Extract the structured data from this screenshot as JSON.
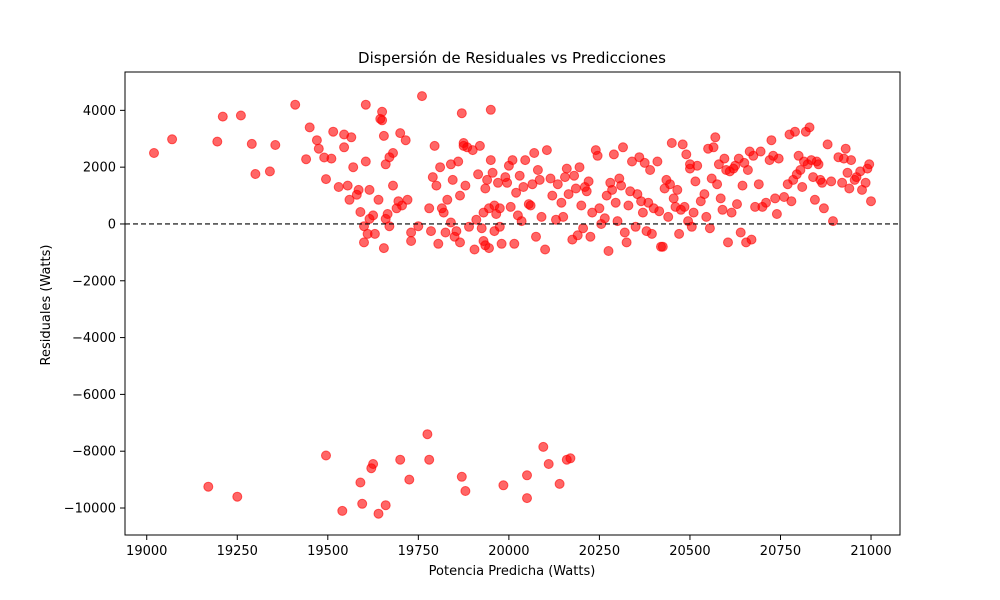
{
  "chart_data": {
    "type": "scatter",
    "title": "Dispersión de Residuales vs Predicciones",
    "xlabel": "Potencia Predicha (Watts)",
    "ylabel": "Residuales (Watts)",
    "xlim": [
      18940,
      21080
    ],
    "ylim": [
      -10950,
      5350
    ],
    "xticks": [
      19000,
      19250,
      19500,
      19750,
      20000,
      20250,
      20500,
      20750,
      21000
    ],
    "xtick_labels": [
      "19000",
      "19250",
      "19500",
      "19750",
      "20000",
      "20250",
      "20500",
      "20750",
      "21000"
    ],
    "yticks": [
      -10000,
      -8000,
      -6000,
      -4000,
      -2000,
      0,
      2000,
      4000
    ],
    "ytick_labels": [
      "−10000",
      "−8000",
      "−6000",
      "−4000",
      "−2000",
      "0",
      "2000",
      "4000"
    ],
    "reference_line": {
      "y": 0,
      "style": "dashed",
      "color": "#000000"
    },
    "grid": false,
    "marker_color": "#ff0000",
    "marker_alpha": 0.6,
    "points": [
      [
        19020,
        2500
      ],
      [
        19070,
        2980
      ],
      [
        19170,
        -9250
      ],
      [
        19195,
        2900
      ],
      [
        19210,
        3780
      ],
      [
        19250,
        -9600
      ],
      [
        19260,
        3820
      ],
      [
        19290,
        2820
      ],
      [
        19300,
        1760
      ],
      [
        19340,
        1850
      ],
      [
        19355,
        2780
      ],
      [
        19410,
        4200
      ],
      [
        19440,
        2280
      ],
      [
        19450,
        3400
      ],
      [
        19470,
        2950
      ],
      [
        19475,
        2650
      ],
      [
        19490,
        2340
      ],
      [
        19495,
        1580
      ],
      [
        19495,
        -8150
      ],
      [
        19510,
        2300
      ],
      [
        19515,
        3250
      ],
      [
        19530,
        1300
      ],
      [
        19540,
        -10100
      ],
      [
        19545,
        2700
      ],
      [
        19545,
        3150
      ],
      [
        19555,
        1350
      ],
      [
        19560,
        850
      ],
      [
        19565,
        3050
      ],
      [
        19570,
        2000
      ],
      [
        19580,
        1030
      ],
      [
        19585,
        1200
      ],
      [
        19590,
        420
      ],
      [
        19590,
        -9100
      ],
      [
        19595,
        -9850
      ],
      [
        19600,
        -80
      ],
      [
        19600,
        -650
      ],
      [
        19605,
        2200
      ],
      [
        19605,
        4200
      ],
      [
        19610,
        -350
      ],
      [
        19615,
        180
      ],
      [
        19615,
        1200
      ],
      [
        19620,
        -8600
      ],
      [
        19625,
        -8450
      ],
      [
        19625,
        300
      ],
      [
        19630,
        -350
      ],
      [
        19640,
        850
      ],
      [
        19640,
        -10200
      ],
      [
        19645,
        3700
      ],
      [
        19650,
        3650
      ],
      [
        19650,
        3950
      ],
      [
        19655,
        -850
      ],
      [
        19655,
        3100
      ],
      [
        19660,
        2100
      ],
      [
        19660,
        -9900
      ],
      [
        19660,
        180
      ],
      [
        19665,
        350
      ],
      [
        19670,
        2350
      ],
      [
        19670,
        -80
      ],
      [
        19680,
        1350
      ],
      [
        19680,
        2500
      ],
      [
        19690,
        550
      ],
      [
        19695,
        800
      ],
      [
        19700,
        3200
      ],
      [
        19700,
        -8300
      ],
      [
        19705,
        650
      ],
      [
        19715,
        2950
      ],
      [
        19720,
        850
      ],
      [
        19725,
        -9000
      ],
      [
        19730,
        -300
      ],
      [
        19730,
        -600
      ],
      [
        19750,
        -80
      ],
      [
        19760,
        4500
      ],
      [
        19775,
        -7400
      ],
      [
        19780,
        550
      ],
      [
        19780,
        -8300
      ],
      [
        19785,
        -250
      ],
      [
        19790,
        1650
      ],
      [
        19795,
        2750
      ],
      [
        19800,
        1350
      ],
      [
        19805,
        -700
      ],
      [
        19810,
        2000
      ],
      [
        19815,
        550
      ],
      [
        19820,
        400
      ],
      [
        19825,
        -300
      ],
      [
        19830,
        850
      ],
      [
        19840,
        50
      ],
      [
        19840,
        2100
      ],
      [
        19845,
        1550
      ],
      [
        19850,
        -450
      ],
      [
        19855,
        -250
      ],
      [
        19860,
        2200
      ],
      [
        19865,
        -650
      ],
      [
        19865,
        1000
      ],
      [
        19870,
        3900
      ],
      [
        19870,
        -8900
      ],
      [
        19875,
        2750
      ],
      [
        19875,
        2850
      ],
      [
        19880,
        1350
      ],
      [
        19880,
        -9400
      ],
      [
        19885,
        2700
      ],
      [
        19890,
        -100
      ],
      [
        19900,
        2600
      ],
      [
        19905,
        -900
      ],
      [
        19910,
        150
      ],
      [
        19915,
        1750
      ],
      [
        19920,
        2750
      ],
      [
        19925,
        -150
      ],
      [
        19930,
        400
      ],
      [
        19930,
        -600
      ],
      [
        19935,
        1250
      ],
      [
        19935,
        -750
      ],
      [
        19940,
        1550
      ],
      [
        19945,
        550
      ],
      [
        19945,
        -850
      ],
      [
        19950,
        4020
      ],
      [
        19950,
        2250
      ],
      [
        19955,
        1800
      ],
      [
        19960,
        -250
      ],
      [
        19960,
        650
      ],
      [
        19965,
        350
      ],
      [
        19970,
        1450
      ],
      [
        19975,
        550
      ],
      [
        19975,
        -100
      ],
      [
        19980,
        -700
      ],
      [
        19985,
        -9200
      ],
      [
        19990,
        1650
      ],
      [
        19995,
        1450
      ],
      [
        20000,
        2050
      ],
      [
        20005,
        600
      ],
      [
        20010,
        2250
      ],
      [
        20015,
        -700
      ],
      [
        20020,
        1100
      ],
      [
        20025,
        300
      ],
      [
        20030,
        1700
      ],
      [
        20035,
        100
      ],
      [
        20040,
        1300
      ],
      [
        20045,
        2250
      ],
      [
        20050,
        -8850
      ],
      [
        20050,
        -9650
      ],
      [
        20055,
        700
      ],
      [
        20060,
        650
      ],
      [
        20065,
        1400
      ],
      [
        20070,
        2500
      ],
      [
        20075,
        -450
      ],
      [
        20080,
        1900
      ],
      [
        20085,
        1550
      ],
      [
        20090,
        250
      ],
      [
        20095,
        -7850
      ],
      [
        20100,
        -900
      ],
      [
        20105,
        2600
      ],
      [
        20110,
        -8450
      ],
      [
        20115,
        1600
      ],
      [
        20120,
        1000
      ],
      [
        20130,
        150
      ],
      [
        20135,
        1400
      ],
      [
        20140,
        -9150
      ],
      [
        20145,
        750
      ],
      [
        20150,
        250
      ],
      [
        20155,
        1650
      ],
      [
        20160,
        1950
      ],
      [
        20160,
        -8300
      ],
      [
        20165,
        1050
      ],
      [
        20170,
        -8250
      ],
      [
        20175,
        -550
      ],
      [
        20180,
        1700
      ],
      [
        20185,
        1250
      ],
      [
        20190,
        -400
      ],
      [
        20195,
        2000
      ],
      [
        20200,
        650
      ],
      [
        20205,
        -150
      ],
      [
        20210,
        1300
      ],
      [
        20215,
        1150
      ],
      [
        20220,
        1500
      ],
      [
        20225,
        -450
      ],
      [
        20230,
        400
      ],
      [
        20240,
        2600
      ],
      [
        20245,
        2400
      ],
      [
        20250,
        550
      ],
      [
        20255,
        0
      ],
      [
        20265,
        200
      ],
      [
        20270,
        1000
      ],
      [
        20275,
        -950
      ],
      [
        20280,
        1450
      ],
      [
        20285,
        1200
      ],
      [
        20290,
        2450
      ],
      [
        20295,
        750
      ],
      [
        20300,
        100
      ],
      [
        20305,
        1600
      ],
      [
        20310,
        1350
      ],
      [
        20315,
        2700
      ],
      [
        20320,
        -300
      ],
      [
        20325,
        -650
      ],
      [
        20330,
        650
      ],
      [
        20335,
        1150
      ],
      [
        20340,
        2200
      ],
      [
        20350,
        -100
      ],
      [
        20355,
        1050
      ],
      [
        20360,
        2350
      ],
      [
        20365,
        800
      ],
      [
        20370,
        400
      ],
      [
        20375,
        2150
      ],
      [
        20380,
        -250
      ],
      [
        20385,
        750
      ],
      [
        20390,
        1900
      ],
      [
        20395,
        -350
      ],
      [
        20400,
        550
      ],
      [
        20410,
        2200
      ],
      [
        20415,
        450
      ],
      [
        20420,
        -800
      ],
      [
        20425,
        -800
      ],
      [
        20430,
        1250
      ],
      [
        20435,
        1550
      ],
      [
        20440,
        250
      ],
      [
        20445,
        1400
      ],
      [
        20450,
        2850
      ],
      [
        20455,
        900
      ],
      [
        20460,
        600
      ],
      [
        20465,
        1200
      ],
      [
        20470,
        -350
      ],
      [
        20475,
        500
      ],
      [
        20480,
        2800
      ],
      [
        20485,
        600
      ],
      [
        20490,
        2450
      ],
      [
        20495,
        100
      ],
      [
        20500,
        1950
      ],
      [
        20500,
        2100
      ],
      [
        20505,
        -100
      ],
      [
        20510,
        400
      ],
      [
        20515,
        1500
      ],
      [
        20520,
        2050
      ],
      [
        20530,
        800
      ],
      [
        20540,
        1050
      ],
      [
        20545,
        250
      ],
      [
        20550,
        2650
      ],
      [
        20555,
        -150
      ],
      [
        20560,
        1600
      ],
      [
        20565,
        2700
      ],
      [
        20570,
        3050
      ],
      [
        20575,
        1400
      ],
      [
        20580,
        2100
      ],
      [
        20585,
        900
      ],
      [
        20590,
        500
      ],
      [
        20595,
        2300
      ],
      [
        20600,
        1900
      ],
      [
        20605,
        -650
      ],
      [
        20610,
        1850
      ],
      [
        20615,
        400
      ],
      [
        20620,
        1950
      ],
      [
        20625,
        2050
      ],
      [
        20630,
        700
      ],
      [
        20635,
        2300
      ],
      [
        20640,
        -300
      ],
      [
        20645,
        1350
      ],
      [
        20650,
        2150
      ],
      [
        20655,
        -650
      ],
      [
        20660,
        1900
      ],
      [
        20665,
        2550
      ],
      [
        20670,
        -550
      ],
      [
        20675,
        2400
      ],
      [
        20680,
        600
      ],
      [
        20690,
        1400
      ],
      [
        20695,
        2550
      ],
      [
        20700,
        600
      ],
      [
        20710,
        750
      ],
      [
        20720,
        2250
      ],
      [
        20725,
        2950
      ],
      [
        20730,
        2400
      ],
      [
        20735,
        900
      ],
      [
        20740,
        350
      ],
      [
        20745,
        2300
      ],
      [
        20760,
        950
      ],
      [
        20770,
        1400
      ],
      [
        20775,
        3150
      ],
      [
        20780,
        800
      ],
      [
        20785,
        1550
      ],
      [
        20790,
        3250
      ],
      [
        20795,
        1750
      ],
      [
        20800,
        2400
      ],
      [
        20805,
        1900
      ],
      [
        20810,
        1300
      ],
      [
        20815,
        2200
      ],
      [
        20820,
        3250
      ],
      [
        20825,
        2100
      ],
      [
        20830,
        3400
      ],
      [
        20835,
        2250
      ],
      [
        20840,
        1650
      ],
      [
        20845,
        850
      ],
      [
        20850,
        2200
      ],
      [
        20855,
        2100
      ],
      [
        20860,
        1550
      ],
      [
        20865,
        1450
      ],
      [
        20870,
        550
      ],
      [
        20880,
        2800
      ],
      [
        20890,
        1500
      ],
      [
        20895,
        100
      ],
      [
        20910,
        2350
      ],
      [
        20920,
        1450
      ],
      [
        20925,
        2300
      ],
      [
        20930,
        2650
      ],
      [
        20935,
        1800
      ],
      [
        20940,
        1250
      ],
      [
        20945,
        2250
      ],
      [
        20955,
        1550
      ],
      [
        20960,
        1650
      ],
      [
        20970,
        1850
      ],
      [
        20975,
        1200
      ],
      [
        20985,
        1450
      ],
      [
        20990,
        1950
      ],
      [
        20995,
        2100
      ],
      [
        21000,
        800
      ]
    ]
  }
}
